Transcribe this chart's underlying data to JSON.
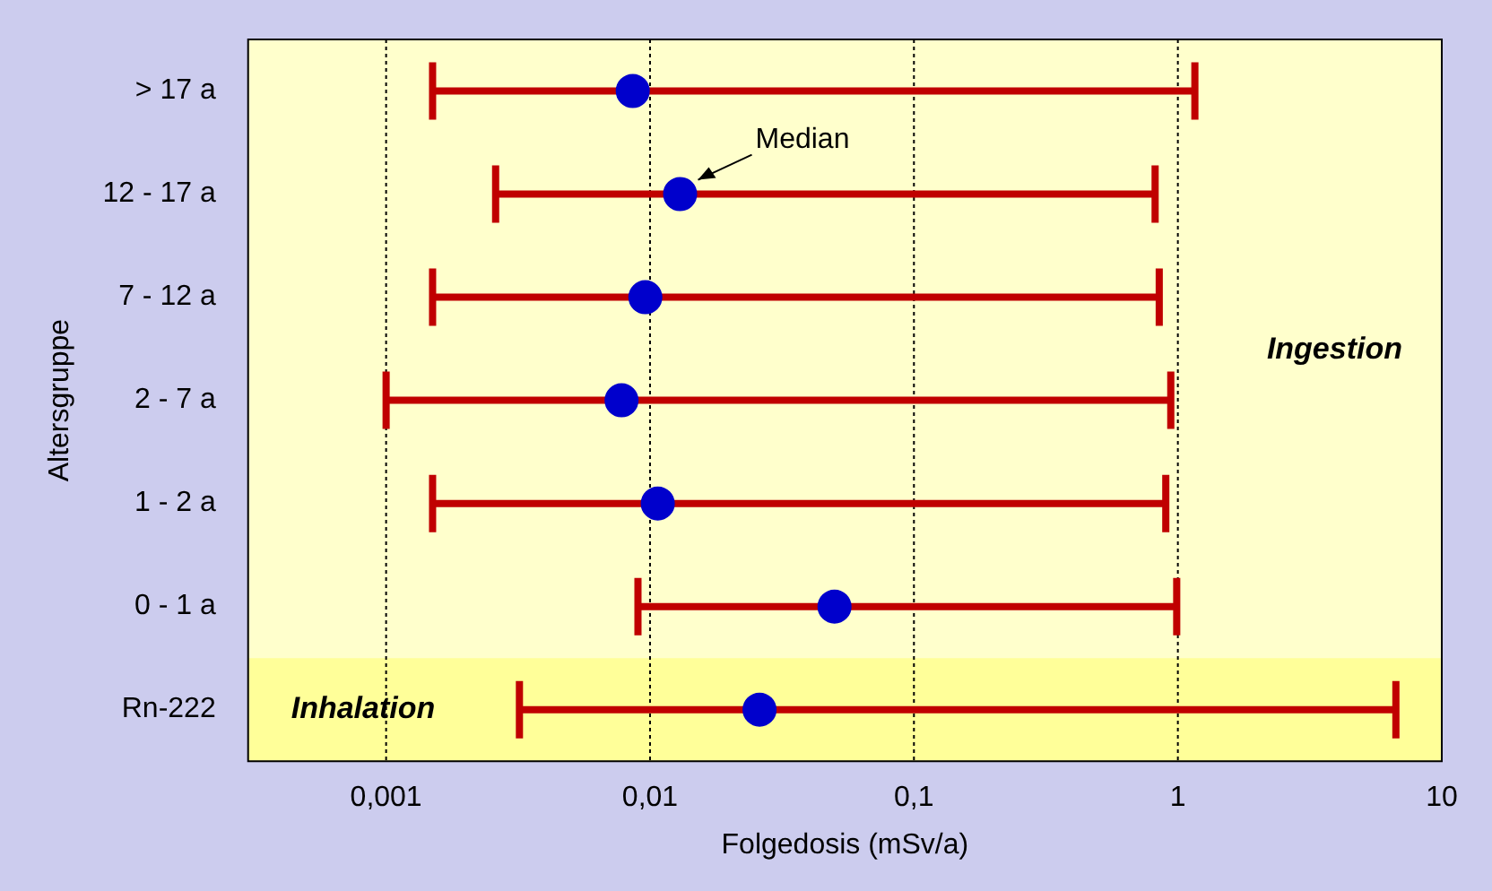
{
  "chart_data": {
    "type": "scatter",
    "orientation": "horizontal",
    "xlabel": "Folgedosis (mSv/a)",
    "ylabel": "Altersgruppe",
    "categories": [
      "> 17 a",
      "12 - 17 a",
      "7 - 12 a",
      "2 - 7 a",
      "1 - 2 a",
      "0 - 1 a",
      "Rn-222"
    ],
    "series": [
      {
        "color": "#c00000",
        "colors": [
          "#0000cc",
          "#0000cc",
          "#0000cc",
          "#0000cc",
          "#0000cc",
          "#0000cc",
          "#0000cc"
        ],
        "values": [
          0.0086,
          0.013,
          0.0096,
          0.0078,
          0.0107,
          0.05,
          0.026
        ],
        "errors": [
          [
            0.0015,
            1.16
          ],
          [
            0.0026,
            0.82
          ],
          [
            0.0015,
            0.85
          ],
          [
            0.001,
            0.94
          ],
          [
            0.0015,
            0.9
          ],
          [
            0.009,
            0.99
          ],
          [
            0.0032,
            6.7
          ]
        ]
      }
    ],
    "log": "x",
    "xlim": [
      0.0003,
      10
    ],
    "xticks": [
      {
        "value": 0.001,
        "label": "0,001"
      },
      {
        "value": 0.01,
        "label": "0,01"
      },
      {
        "value": 0.1,
        "label": "0,1"
      },
      1,
      10
    ],
    "grid": "x",
    "marker": "circle",
    "legend": false,
    "bands": [
      {
        "axis": "y",
        "from": "Rn-222",
        "to": "Rn-222",
        "label": "Inhalation",
        "color": "#ffff99"
      }
    ],
    "annotations": [
      "Ingestion",
      {
        "text": "Median",
        "x": 0.013,
        "y": "12 - 17 a"
      }
    ]
  }
}
